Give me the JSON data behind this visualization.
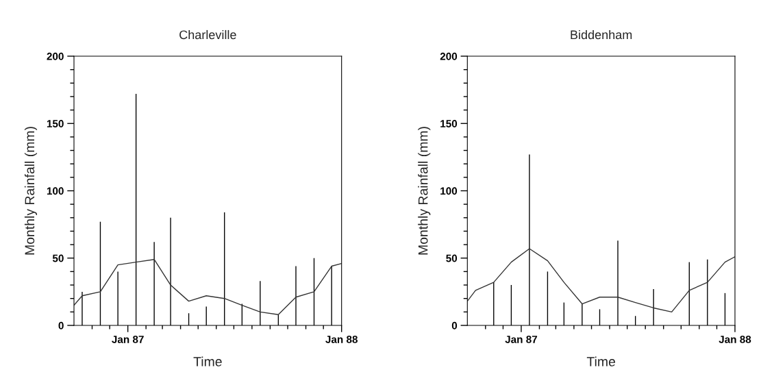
{
  "chart_data": [
    {
      "type": "bar",
      "title": "Charleville",
      "xlabel": "Time",
      "ylabel": "Monthly Rainfall (mm)",
      "xlim": [
        "1986-10-01",
        "1988-01-01"
      ],
      "ylim": [
        0,
        200
      ],
      "xticks": [
        {
          "value": "1986-11-01",
          "label": null
        },
        {
          "value": "1986-12-01",
          "label": null
        },
        {
          "value": "1987-01-01",
          "label": "Jan 87"
        },
        {
          "value": "1987-02-01",
          "label": null
        },
        {
          "value": "1987-03-01",
          "label": null
        },
        {
          "value": "1987-04-01",
          "label": null
        },
        {
          "value": "1987-05-01",
          "label": null
        },
        {
          "value": "1987-06-01",
          "label": null
        },
        {
          "value": "1987-07-01",
          "label": null
        },
        {
          "value": "1987-08-01",
          "label": null
        },
        {
          "value": "1987-09-01",
          "label": null
        },
        {
          "value": "1987-10-01",
          "label": null
        },
        {
          "value": "1987-11-01",
          "label": null
        },
        {
          "value": "1987-12-01",
          "label": null
        },
        {
          "value": "1988-01-01",
          "label": "Jan 88"
        }
      ],
      "yticks": [
        0,
        {
          "value": 10,
          "label": null
        },
        {
          "value": 20,
          "label": null
        },
        {
          "value": 30,
          "label": null
        },
        {
          "value": 40,
          "label": null
        },
        50,
        {
          "value": 60,
          "label": null
        },
        {
          "value": 70,
          "label": null
        },
        {
          "value": 80,
          "label": null
        },
        {
          "value": 90,
          "label": null
        },
        100,
        {
          "value": 110,
          "label": null
        },
        {
          "value": 120,
          "label": null
        },
        {
          "value": 130,
          "label": null
        },
        {
          "value": 140,
          "label": null
        },
        150,
        {
          "value": 160,
          "label": null
        },
        {
          "value": 170,
          "label": null
        },
        {
          "value": 180,
          "label": null
        },
        {
          "value": 190,
          "label": null
        },
        200
      ],
      "grid": false,
      "legend": false,
      "series": [
        {
          "color": "#000000",
          "x": [
            "1986-10-15",
            "1986-11-15",
            "1986-12-15",
            "1987-01-15",
            "1987-02-15",
            "1987-03-15",
            "1987-04-15",
            "1987-05-15",
            "1987-06-15",
            "1987-07-15",
            "1987-08-15",
            "1987-09-15",
            "1987-10-15",
            "1987-11-15",
            "1987-12-15"
          ],
          "values": [
            25,
            77,
            40,
            172,
            62,
            80,
            9,
            14,
            84,
            16,
            33,
            8,
            44,
            50,
            44
          ]
        },
        {
          "type": "line",
          "color": "#333333",
          "x": [
            "1986-10-01",
            "1986-10-15",
            "1986-11-15",
            "1986-12-15",
            "1987-01-15",
            "1987-02-15",
            "1987-03-15",
            "1987-04-15",
            "1987-05-15",
            "1987-06-15",
            "1987-07-15",
            "1987-08-15",
            "1987-09-15",
            "1987-10-15",
            "1987-11-15",
            "1987-12-15",
            "1988-01-01"
          ],
          "values": [
            15,
            22,
            25,
            45,
            47,
            49,
            30,
            18,
            22,
            20,
            15,
            10,
            8,
            21,
            25,
            44,
            46
          ]
        }
      ]
    },
    {
      "type": "bar",
      "title": "Biddenham",
      "xlabel": "Time",
      "ylabel": "Monthly Rainfall (mm)",
      "xlim": [
        "1986-10-01",
        "1988-01-01"
      ],
      "ylim": [
        0,
        200
      ],
      "xticks": [
        {
          "value": "1986-11-01",
          "label": null
        },
        {
          "value": "1986-12-01",
          "label": null
        },
        {
          "value": "1987-01-01",
          "label": "Jan 87"
        },
        {
          "value": "1987-02-01",
          "label": null
        },
        {
          "value": "1987-03-01",
          "label": null
        },
        {
          "value": "1987-04-01",
          "label": null
        },
        {
          "value": "1987-05-01",
          "label": null
        },
        {
          "value": "1987-06-01",
          "label": null
        },
        {
          "value": "1987-07-01",
          "label": null
        },
        {
          "value": "1987-08-01",
          "label": null
        },
        {
          "value": "1987-09-01",
          "label": null
        },
        {
          "value": "1987-10-01",
          "label": null
        },
        {
          "value": "1987-11-01",
          "label": null
        },
        {
          "value": "1987-12-01",
          "label": null
        },
        {
          "value": "1988-01-01",
          "label": "Jan 88"
        }
      ],
      "yticks": [
        0,
        {
          "value": 10,
          "label": null
        },
        {
          "value": 20,
          "label": null
        },
        {
          "value": 30,
          "label": null
        },
        {
          "value": 40,
          "label": null
        },
        50,
        {
          "value": 60,
          "label": null
        },
        {
          "value": 70,
          "label": null
        },
        {
          "value": 80,
          "label": null
        },
        {
          "value": 90,
          "label": null
        },
        100,
        {
          "value": 110,
          "label": null
        },
        {
          "value": 120,
          "label": null
        },
        {
          "value": 130,
          "label": null
        },
        {
          "value": 140,
          "label": null
        },
        150,
        {
          "value": 160,
          "label": null
        },
        {
          "value": 170,
          "label": null
        },
        {
          "value": 180,
          "label": null
        },
        {
          "value": 190,
          "label": null
        },
        200
      ],
      "grid": false,
      "legend": false,
      "series": [
        {
          "color": "#000000",
          "x": [
            "1986-11-15",
            "1986-12-15",
            "1987-01-15",
            "1987-02-15",
            "1987-03-15",
            "1987-04-15",
            "1987-05-15",
            "1987-06-15",
            "1987-07-15",
            "1987-08-15",
            "1987-10-15",
            "1987-11-15",
            "1987-12-15"
          ],
          "values": [
            32,
            30,
            127,
            40,
            17,
            16,
            12,
            63,
            7,
            27,
            47,
            49,
            24
          ]
        },
        {
          "type": "line",
          "color": "#333333",
          "x": [
            "1986-10-01",
            "1986-10-15",
            "1986-11-15",
            "1986-12-15",
            "1987-01-15",
            "1987-02-15",
            "1987-03-15",
            "1987-04-15",
            "1987-05-15",
            "1987-06-15",
            "1987-07-15",
            "1987-08-15",
            "1987-09-15",
            "1987-10-15",
            "1987-11-15",
            "1987-12-15",
            "1988-01-01"
          ],
          "values": [
            18,
            26,
            32,
            47,
            57,
            48,
            32,
            16,
            21,
            21,
            17,
            13,
            10,
            26,
            32,
            47,
            51
          ]
        }
      ]
    }
  ]
}
